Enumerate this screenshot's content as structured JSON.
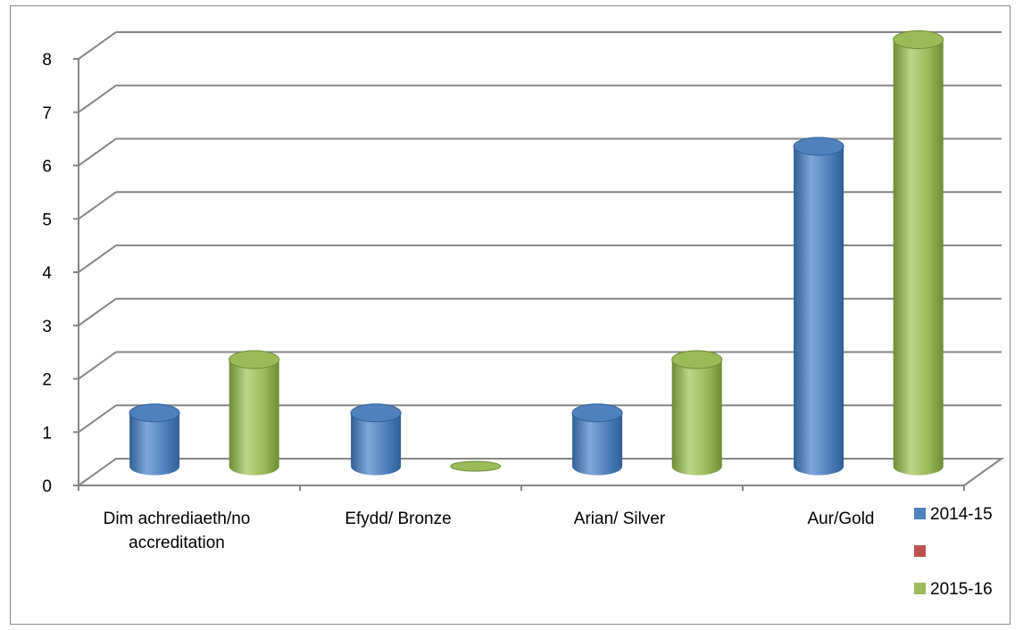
{
  "chart_data": {
    "type": "bar",
    "style": "3d-cylinder",
    "categories": [
      "Dim achrediaeth/no accreditation",
      "Efydd/ Bronze",
      "Arian/ Silver",
      "Aur/Gold"
    ],
    "category_label_lines": [
      [
        "Dim achrediaeth/no",
        "accreditation"
      ],
      [
        "Efydd/ Bronze"
      ],
      [
        "Arian/ Silver"
      ],
      [
        "Aur/Gold"
      ]
    ],
    "series": [
      {
        "name": "2014-15",
        "values": [
          1,
          1,
          1,
          6
        ],
        "color": "#4f81bd",
        "dark": "#2f5f96",
        "light": "#7fa8d8"
      },
      {
        "name": "",
        "values": [
          0,
          0,
          0,
          0
        ],
        "color": "#c0504d",
        "dark": "#8f2f2c",
        "light": "#d98381"
      },
      {
        "name": "2015-16",
        "values": [
          2,
          0,
          2,
          8
        ],
        "color": "#9bbb59",
        "dark": "#6e8c35",
        "light": "#bcd68a"
      }
    ],
    "ylim": [
      0,
      8
    ],
    "yticks": [
      0,
      1,
      2,
      3,
      4,
      5,
      6,
      7,
      8
    ],
    "grid": true,
    "legend": "right",
    "xlabel": "",
    "ylabel": "",
    "title": ""
  }
}
